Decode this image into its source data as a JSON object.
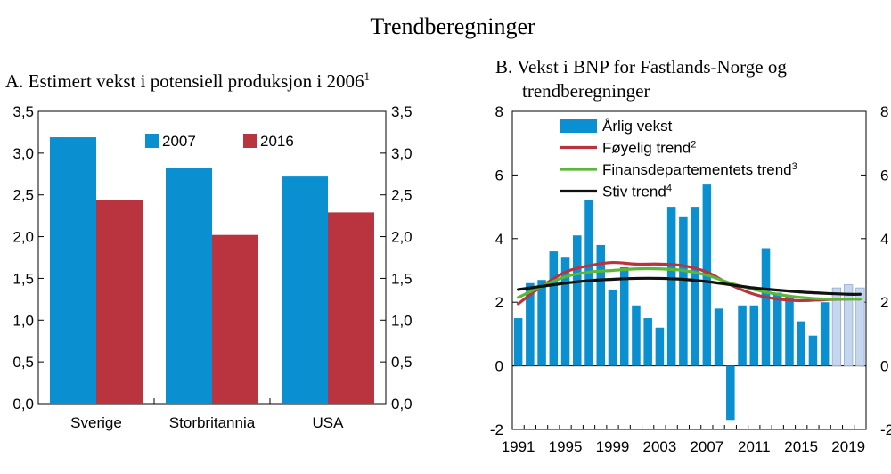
{
  "page_title": "Trendberegninger",
  "colors": {
    "blue": "#0a8fd0",
    "red": "#b9343f",
    "light_blue": "#c5d7ef",
    "green": "#5ab836",
    "black": "#111111"
  },
  "chart_data": [
    {
      "type": "bar",
      "title": "A. Estimert vekst i potensiell produksjon i 2006",
      "title_sup": "1",
      "categories": [
        "Sverige",
        "Storbritannia",
        "USA"
      ],
      "series": [
        {
          "name": "2007",
          "color": "#0a8fd0",
          "values": [
            3.19,
            2.82,
            2.72
          ]
        },
        {
          "name": "2016",
          "color": "#b9343f",
          "values": [
            2.44,
            2.02,
            2.29
          ]
        }
      ],
      "ylim": [
        0,
        3.5
      ],
      "yticks": [
        "0,0",
        "0,5",
        "1,0",
        "1,5",
        "2,0",
        "2,5",
        "3,0",
        "3,5"
      ],
      "legend_position": "top-center"
    },
    {
      "type": "bar+line",
      "title_line1": "B. Vekst i BNP for Fastlands-Norge og",
      "title_line2": "trendberegninger",
      "ylim": [
        -2,
        8
      ],
      "yticks": [
        "-2",
        "0",
        "2",
        "4",
        "6",
        "8"
      ],
      "xtick_labels": [
        "1991",
        "1995",
        "1999",
        "2003",
        "2007",
        "2011",
        "2015",
        "2019"
      ],
      "years": [
        1991,
        1992,
        1993,
        1994,
        1995,
        1996,
        1997,
        1998,
        1999,
        2000,
        2001,
        2002,
        2003,
        2004,
        2005,
        2006,
        2007,
        2008,
        2009,
        2010,
        2011,
        2012,
        2013,
        2014,
        2015,
        2016,
        2017,
        2018,
        2019,
        2020
      ],
      "bars": {
        "name": "Årlig vekst",
        "values": [
          1.5,
          2.6,
          2.7,
          3.6,
          3.4,
          4.1,
          5.2,
          3.8,
          2.4,
          3.1,
          1.9,
          1.5,
          1.2,
          5.0,
          4.7,
          5.0,
          5.7,
          1.8,
          -1.7,
          1.9,
          1.9,
          3.7,
          2.3,
          2.2,
          1.4,
          0.95,
          2.0,
          2.45,
          2.55,
          2.45
        ],
        "projected_from_year": 2017
      },
      "lines": [
        {
          "name": "Føyelig trend",
          "sup": "2",
          "color": "#b9343f",
          "years": [
            1991,
            1993,
            1995,
            1997,
            1999,
            2001,
            2003,
            2005,
            2007,
            2009,
            2011,
            2013,
            2015,
            2017,
            2019,
            2020
          ],
          "values": [
            1.95,
            2.5,
            2.95,
            3.15,
            3.25,
            3.2,
            3.2,
            3.15,
            2.95,
            2.55,
            2.25,
            2.1,
            2.05,
            2.08,
            2.1,
            2.1
          ]
        },
        {
          "name": "Finansdepartementets trend",
          "sup": "3",
          "color": "#5ab836",
          "years": [
            1991,
            1993,
            1995,
            1997,
            1999,
            2001,
            2003,
            2005,
            2007,
            2009,
            2011,
            2013,
            2015,
            2017,
            2019,
            2020
          ],
          "values": [
            2.15,
            2.5,
            2.8,
            2.95,
            3.0,
            3.05,
            3.05,
            3.0,
            2.85,
            2.6,
            2.4,
            2.25,
            2.15,
            2.1,
            2.1,
            2.1
          ]
        },
        {
          "name": "Stiv trend",
          "sup": "4",
          "color": "#111111",
          "years": [
            1991,
            1993,
            1995,
            1997,
            1999,
            2001,
            2003,
            2005,
            2007,
            2009,
            2011,
            2013,
            2015,
            2017,
            2019,
            2020
          ],
          "values": [
            2.4,
            2.5,
            2.6,
            2.68,
            2.72,
            2.75,
            2.75,
            2.72,
            2.65,
            2.55,
            2.45,
            2.38,
            2.32,
            2.28,
            2.25,
            2.25
          ]
        }
      ],
      "legend_position": "top-left"
    }
  ]
}
